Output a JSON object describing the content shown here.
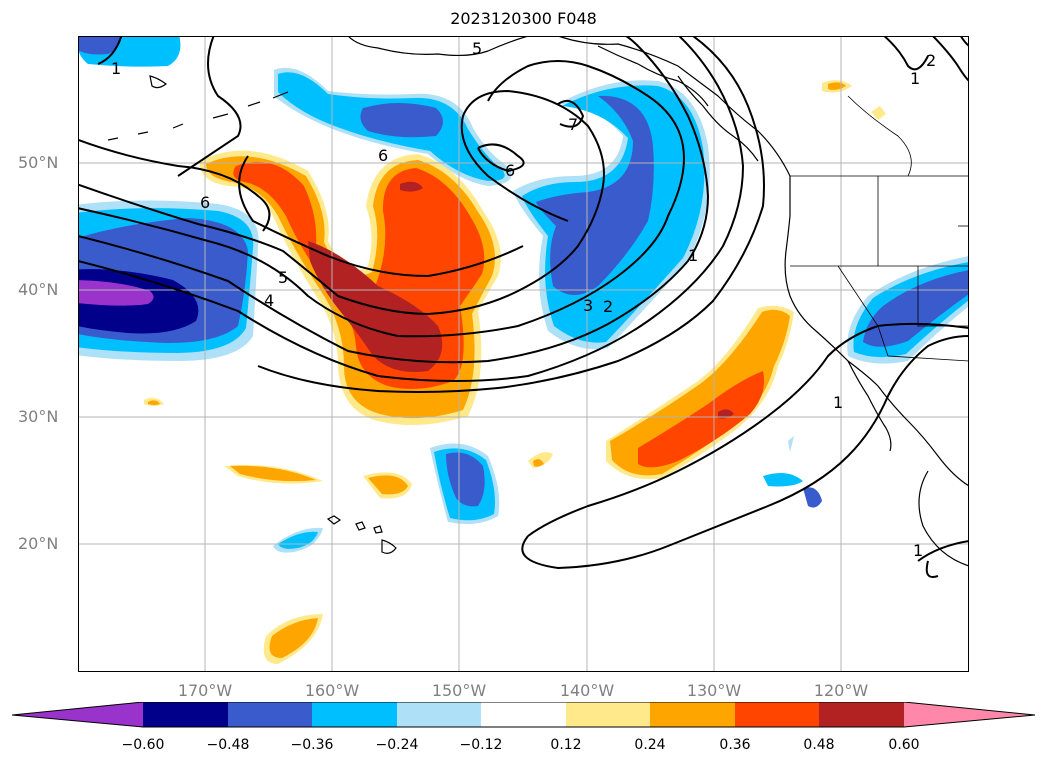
{
  "title": "2023120300 F048",
  "map": {
    "region": "North Pacific / western North America",
    "gridlines": true,
    "lat_labels": [
      "50°N",
      "40°N",
      "30°N",
      "20°N"
    ],
    "lon_labels": [
      "170°W",
      "160°W",
      "150°W",
      "140°W",
      "130°W",
      "120°W"
    ],
    "contour_labels": [
      "5",
      "6",
      "6",
      "6",
      "5",
      "4",
      "3",
      "2",
      "1",
      "1",
      "7",
      "1",
      "2",
      "1",
      "1"
    ],
    "fill_colors": {
      "lt_-0.60": "#9933cc",
      "-0.60_-0.48": "#00008b",
      "-0.48_-0.36": "#3a5bcc",
      "-0.36_-0.24": "#00bfff",
      "-0.24_-0.12": "#aee0f8",
      "-0.12_0.12": "#ffffff",
      "0.12_0.24": "#ffe98a",
      "0.24_0.36": "#ffa500",
      "0.36_0.48": "#ff4500",
      "0.48_0.60": "#b22222",
      "gt_0.60": "#ff88aa"
    }
  },
  "colorbar": {
    "ticks": [
      "−0.60",
      "−0.48",
      "−0.36",
      "−0.24",
      "−0.12",
      "0.12",
      "0.24",
      "0.36",
      "0.48",
      "0.60"
    ],
    "colors": [
      "#9933cc",
      "#00008b",
      "#3a5bcc",
      "#00bfff",
      "#aee0f8",
      "#ffffff",
      "#ffe98a",
      "#ffa500",
      "#ff4500",
      "#b22222",
      "#ff88aa"
    ]
  }
}
